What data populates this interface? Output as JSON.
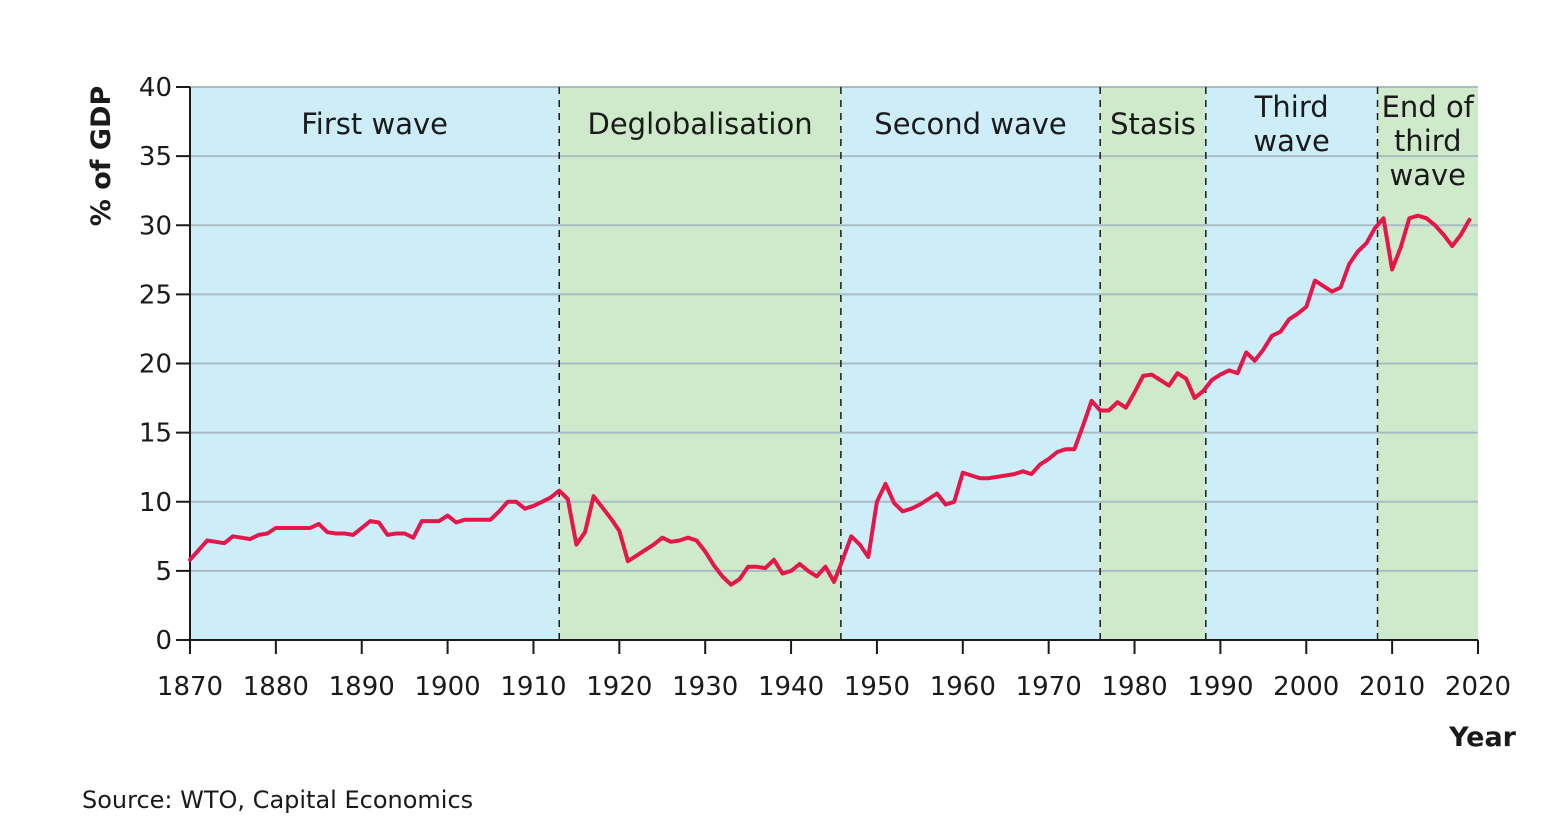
{
  "chart_data": {
    "type": "line",
    "ylabel": "% of GDP",
    "xlabel": "Year",
    "xlim": [
      1870,
      2020
    ],
    "ylim": [
      0,
      40
    ],
    "x_ticks": [
      "1870",
      "1880",
      "1890",
      "1900",
      "1910",
      "1920",
      "1930",
      "1940",
      "1950",
      "1960",
      "1970",
      "1980",
      "1990",
      "2000",
      "2010",
      "2020"
    ],
    "y_ticks": [
      "0",
      "5",
      "10",
      "15",
      "20",
      "25",
      "30",
      "35",
      "40"
    ],
    "grid": "horizontal",
    "line_color": "#e5174a",
    "era_colors": {
      "blue": "#cdeef9",
      "green": "#cfeacb"
    },
    "eras": [
      {
        "label": [
          "First wave"
        ],
        "start": 1870,
        "end": 1913,
        "color": "blue"
      },
      {
        "label": [
          "Deglobalisation"
        ],
        "start": 1913,
        "end": 1945.8,
        "color": "green"
      },
      {
        "label": [
          "Second wave"
        ],
        "start": 1945.8,
        "end": 1976,
        "color": "blue"
      },
      {
        "label": [
          "Stasis"
        ],
        "start": 1976,
        "end": 1988.3,
        "color": "green"
      },
      {
        "label": [
          "Third",
          "wave"
        ],
        "start": 1988.3,
        "end": 2008.3,
        "color": "blue"
      },
      {
        "label": [
          "End of",
          "third",
          "wave"
        ],
        "start": 2008.3,
        "end": 2020,
        "color": "green"
      }
    ],
    "series": [
      {
        "x": [
          1870,
          1872,
          1873,
          1874,
          1875,
          1876,
          1877,
          1878,
          1879,
          1880,
          1881,
          1882,
          1883,
          1884,
          1885,
          1886,
          1887,
          1888,
          1889,
          1890,
          1891,
          1892,
          1893,
          1894,
          1895,
          1896,
          1897,
          1898,
          1899,
          1900,
          1901,
          1902,
          1903,
          1904,
          1905,
          1906,
          1907,
          1908,
          1909,
          1910,
          1911,
          1912,
          1913,
          1914,
          1915,
          1916,
          1917,
          1918,
          1919,
          1920,
          1921,
          1922,
          1923,
          1924,
          1925,
          1926,
          1927,
          1928,
          1929,
          1930,
          1931,
          1932,
          1933,
          1934,
          1935,
          1936,
          1937,
          1938,
          1939,
          1940,
          1941,
          1942,
          1943,
          1944,
          1945,
          1946,
          1947,
          1948,
          1949,
          1950,
          1951,
          1952,
          1953,
          1954,
          1955,
          1956,
          1957,
          1958,
          1959,
          1960,
          1961,
          1962,
          1963,
          1964,
          1965,
          1966,
          1967,
          1968,
          1969,
          1970,
          1971,
          1972,
          1973,
          1974,
          1975,
          1976,
          1977,
          1978,
          1979,
          1980,
          1981,
          1982,
          1983,
          1984,
          1985,
          1986,
          1987,
          1988,
          1989,
          1990,
          1991,
          1992,
          1993,
          1994,
          1995,
          1996,
          1997,
          1998,
          1999,
          2000,
          2001,
          2002,
          2003,
          2004,
          2005,
          2006,
          2007,
          2008,
          2009,
          2010,
          2011,
          2012,
          2013,
          2014,
          2015,
          2016,
          2017,
          2018,
          2019
        ],
        "y": [
          5.8,
          7.2,
          7.1,
          7.0,
          7.5,
          7.4,
          7.3,
          7.6,
          7.7,
          8.1,
          8.1,
          8.1,
          8.1,
          8.1,
          8.4,
          7.8,
          7.7,
          7.7,
          7.6,
          8.1,
          8.6,
          8.5,
          7.6,
          7.7,
          7.7,
          7.4,
          8.6,
          8.6,
          8.6,
          9.0,
          8.5,
          8.7,
          8.7,
          8.7,
          8.7,
          9.3,
          10.0,
          10.0,
          9.5,
          9.7,
          10.0,
          10.3,
          10.8,
          10.2,
          6.9,
          7.8,
          10.4,
          9.6,
          8.8,
          7.9,
          5.7,
          6.1,
          6.5,
          6.9,
          7.4,
          7.1,
          7.2,
          7.4,
          7.2,
          6.4,
          5.4,
          4.6,
          4.0,
          4.4,
          5.3,
          5.3,
          5.2,
          5.8,
          4.8,
          5.0,
          5.5,
          5.0,
          4.6,
          5.3,
          4.2,
          5.8,
          7.5,
          6.9,
          6.0,
          10.0,
          11.3,
          9.9,
          9.3,
          9.5,
          9.8,
          10.2,
          10.6,
          9.8,
          10.0,
          12.1,
          11.9,
          11.7,
          11.7,
          11.8,
          11.9,
          12.0,
          12.2,
          12.0,
          12.7,
          13.1,
          13.6,
          13.8,
          13.8,
          15.5,
          17.3,
          16.6,
          16.6,
          17.2,
          16.8,
          17.9,
          19.1,
          19.2,
          18.8,
          18.4,
          19.3,
          18.9,
          17.5,
          18.0,
          18.8,
          19.2,
          19.5,
          19.3,
          20.8,
          20.2,
          21.0,
          22.0,
          22.3,
          23.2,
          23.6,
          24.1,
          26.0,
          25.6,
          25.2,
          25.5,
          27.2,
          28.1,
          28.7,
          29.8,
          30.5,
          26.8,
          28.4,
          30.5,
          30.7,
          30.5,
          30.0,
          29.3,
          28.5,
          29.3,
          30.4
        ]
      }
    ]
  },
  "source_note": "Source: WTO, Capital Economics"
}
